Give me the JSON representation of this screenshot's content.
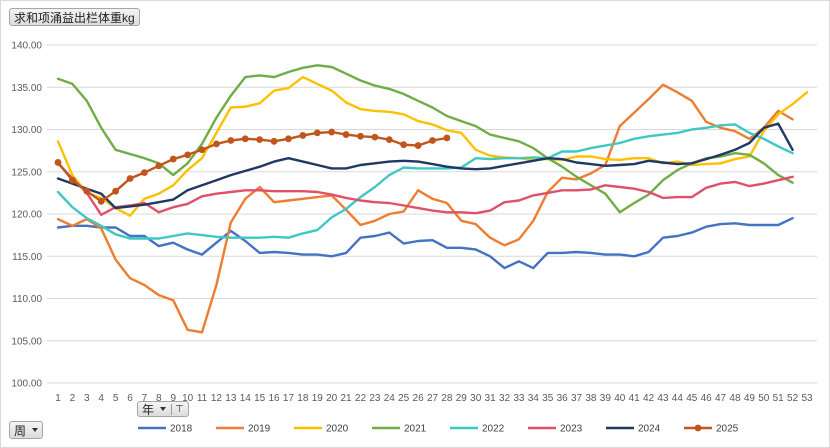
{
  "pivot": {
    "value_field": "求和项涌益出栏体重kg",
    "series_field": "年",
    "axis_field": "周"
  },
  "chart_data": {
    "type": "line",
    "title": "",
    "xlabel": "",
    "ylabel": "",
    "x": [
      1,
      2,
      3,
      4,
      5,
      6,
      7,
      8,
      9,
      10,
      11,
      12,
      13,
      14,
      15,
      16,
      17,
      18,
      19,
      20,
      21,
      22,
      23,
      24,
      25,
      26,
      27,
      28,
      29,
      30,
      31,
      32,
      33,
      34,
      35,
      36,
      37,
      38,
      39,
      40,
      41,
      42,
      43,
      44,
      45,
      46,
      47,
      48,
      49,
      50,
      51,
      52,
      53
    ],
    "ylim": [
      100,
      140
    ],
    "yticks": [
      "100.00",
      "105.00",
      "110.00",
      "115.00",
      "120.00",
      "125.00",
      "130.00",
      "135.00",
      "140.00"
    ],
    "grid": true,
    "legend_position": "bottom",
    "series": [
      {
        "name": "2018",
        "color": "#4472C4",
        "values": [
          118.4,
          118.6,
          118.6,
          118.4,
          118.4,
          117.4,
          117.4,
          116.2,
          116.6,
          115.8,
          115.2,
          116.6,
          118.0,
          116.8,
          115.4,
          115.5,
          115.4,
          115.2,
          115.2,
          115.0,
          115.4,
          117.2,
          117.4,
          117.8,
          116.5,
          116.8,
          116.9,
          116.0,
          116.0,
          115.8,
          115.0,
          113.6,
          114.4,
          113.6,
          115.4,
          115.4,
          115.5,
          115.4,
          115.2,
          115.2,
          115.0,
          115.5,
          117.2,
          117.4,
          117.8,
          118.5,
          118.8,
          118.9,
          118.7,
          118.7,
          118.7,
          119.5,
          null
        ]
      },
      {
        "name": "2019",
        "color": "#ED7D31",
        "values": [
          119.4,
          118.6,
          119.4,
          118.3,
          114.6,
          112.4,
          111.6,
          110.4,
          109.8,
          106.3,
          106.0,
          111.6,
          119.0,
          121.8,
          123.2,
          121.4,
          121.6,
          121.8,
          122.0,
          122.2,
          120.5,
          118.7,
          119.2,
          120.0,
          120.3,
          122.8,
          121.8,
          121.3,
          119.2,
          118.8,
          117.2,
          116.3,
          117.0,
          119.2,
          122.6,
          124.3,
          124.1,
          124.8,
          125.8,
          130.4,
          132.0,
          133.6,
          135.3,
          134.4,
          133.4,
          130.9,
          130.2,
          129.8,
          128.9,
          130.2,
          132.2,
          131.2,
          null
        ]
      },
      {
        "name": "2020",
        "color": "#FFC000",
        "values": [
          128.6,
          124.6,
          122.5,
          121.9,
          120.7,
          119.8,
          121.8,
          122.4,
          123.4,
          125.2,
          126.6,
          129.6,
          132.6,
          132.7,
          133.1,
          134.6,
          134.9,
          136.2,
          135.4,
          134.6,
          133.2,
          132.4,
          132.2,
          132.1,
          131.8,
          131.0,
          130.6,
          129.9,
          129.6,
          127.6,
          126.9,
          126.7,
          126.6,
          126.4,
          126.5,
          126.4,
          126.8,
          126.8,
          126.5,
          126.4,
          126.6,
          126.6,
          126.0,
          126.2,
          125.8,
          125.9,
          126.0,
          126.5,
          126.8,
          129.8,
          131.8,
          133.0,
          134.4
        ]
      },
      {
        "name": "2021",
        "color": "#70AD47",
        "values": [
          136.0,
          135.4,
          133.4,
          130.2,
          127.6,
          127.1,
          126.6,
          126.0,
          124.6,
          126.0,
          128.3,
          131.4,
          134.0,
          136.2,
          136.4,
          136.2,
          136.8,
          137.3,
          137.6,
          137.4,
          136.6,
          135.8,
          135.2,
          134.8,
          134.2,
          133.4,
          132.6,
          131.6,
          131.0,
          130.4,
          129.4,
          129.0,
          128.6,
          127.8,
          126.6,
          125.6,
          124.4,
          123.4,
          122.4,
          120.2,
          121.3,
          122.3,
          124.0,
          125.2,
          126.0,
          126.6,
          126.8,
          127.2,
          127.0,
          126.0,
          124.6,
          123.7,
          null
        ]
      },
      {
        "name": "2022",
        "color": "#3FC8C3",
        "values": [
          122.6,
          120.8,
          119.5,
          118.6,
          117.6,
          117.1,
          117.1,
          117.1,
          117.4,
          117.7,
          117.5,
          117.3,
          117.2,
          117.2,
          117.2,
          117.3,
          117.2,
          117.7,
          118.1,
          119.6,
          120.6,
          122.0,
          123.2,
          124.6,
          125.5,
          125.4,
          125.4,
          125.4,
          125.5,
          126.6,
          126.5,
          126.6,
          126.6,
          126.7,
          126.6,
          127.4,
          127.4,
          127.8,
          128.1,
          128.4,
          128.9,
          129.2,
          129.4,
          129.6,
          130.0,
          130.2,
          130.5,
          130.6,
          129.6,
          128.9,
          128.0,
          127.2,
          null
        ]
      },
      {
        "name": "2023",
        "color": "#E0506B",
        "values": [
          126.0,
          124.2,
          122.5,
          119.9,
          120.8,
          121.0,
          121.3,
          120.2,
          120.8,
          121.2,
          122.1,
          122.4,
          122.6,
          122.8,
          122.8,
          122.7,
          122.7,
          122.7,
          122.6,
          122.3,
          121.9,
          121.6,
          121.4,
          121.3,
          121.0,
          120.7,
          120.4,
          120.2,
          120.2,
          120.1,
          120.4,
          121.4,
          121.6,
          122.2,
          122.5,
          122.8,
          122.8,
          122.9,
          123.4,
          123.2,
          123.0,
          122.6,
          121.9,
          122.0,
          122.0,
          123.1,
          123.6,
          123.8,
          123.3,
          123.6,
          124.0,
          124.4,
          null
        ]
      },
      {
        "name": "2024",
        "color": "#203864",
        "values": [
          124.2,
          123.6,
          123.0,
          122.4,
          120.7,
          120.9,
          121.1,
          121.4,
          121.7,
          122.8,
          123.4,
          124.0,
          124.6,
          125.1,
          125.6,
          126.2,
          126.6,
          126.2,
          125.8,
          125.4,
          125.4,
          125.8,
          126.0,
          126.2,
          126.3,
          126.2,
          125.9,
          125.6,
          125.4,
          125.3,
          125.4,
          125.7,
          126.0,
          126.3,
          126.6,
          126.5,
          126.1,
          125.9,
          125.7,
          125.8,
          125.9,
          126.3,
          126.1,
          125.9,
          126.0,
          126.5,
          127.0,
          127.6,
          128.4,
          130.2,
          130.7,
          127.6,
          null
        ]
      },
      {
        "name": "2025",
        "color": "#C0561E",
        "values": [
          126.1,
          124.0,
          122.7,
          121.5,
          122.7,
          124.2,
          124.9,
          125.7,
          126.5,
          127.0,
          127.6,
          128.3,
          128.7,
          128.9,
          128.8,
          128.6,
          128.9,
          129.3,
          129.6,
          129.7,
          129.4,
          129.2,
          129.1,
          128.8,
          128.2,
          128.1,
          128.7,
          129.0,
          null,
          null,
          null,
          null,
          null,
          null,
          null,
          null,
          null,
          null,
          null,
          null,
          null,
          null,
          null,
          null,
          null,
          null,
          null,
          null,
          null,
          null,
          null,
          null,
          null
        ]
      }
    ]
  }
}
